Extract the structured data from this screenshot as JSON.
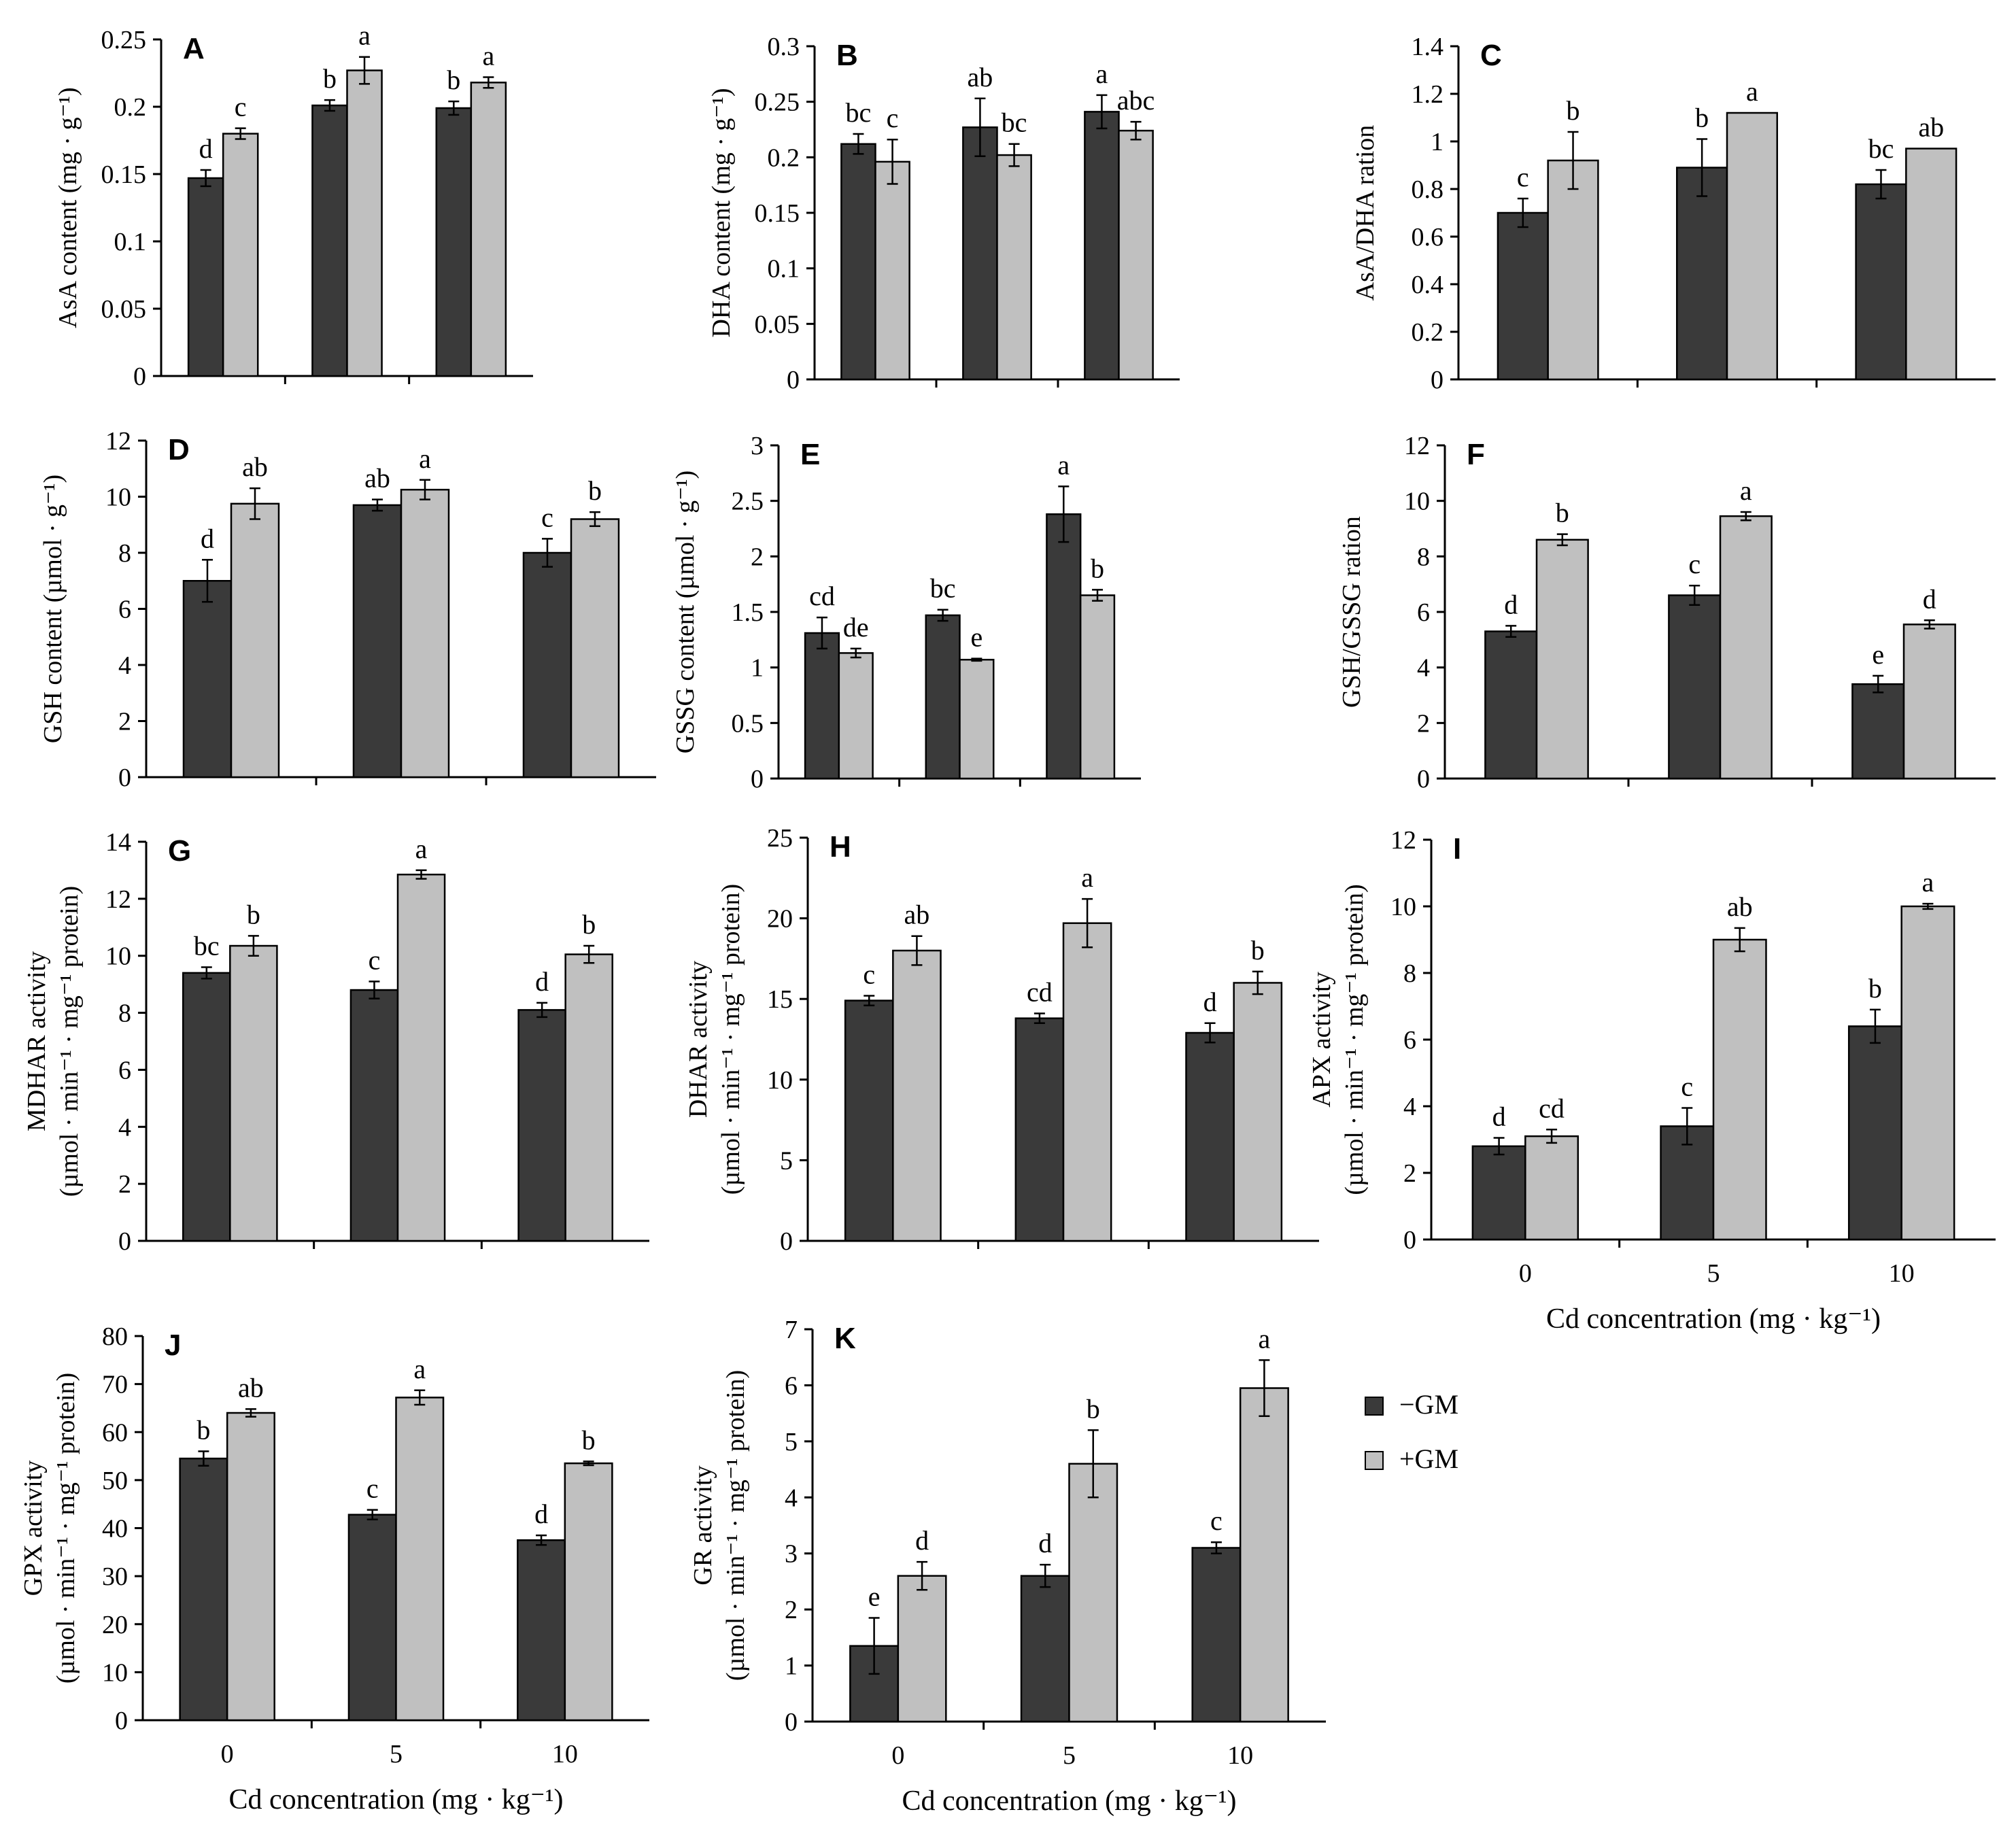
{
  "legend": [
    {
      "label": "−GM",
      "color": "#3a3a3a"
    },
    {
      "label": "+GM",
      "color": "#c0c0c0"
    }
  ],
  "colors": {
    "bar_minus": "#3a3a3a",
    "bar_plus": "#c0c0c0",
    "axis": "#000000"
  },
  "chart_data": [
    {
      "id": "A",
      "type": "bar",
      "categories": [
        "0",
        "5",
        "10"
      ],
      "ylabel": [
        "AsA content (mg · g⁻¹)"
      ],
      "xlabel": "",
      "ylim": [
        0,
        0.25
      ],
      "yticks": [
        "0",
        "0.05",
        "0.1",
        "0.15",
        "0.2",
        "0.25"
      ],
      "show_xticks": false,
      "series": [
        {
          "name": "−GM",
          "values": [
            0.147,
            0.201,
            0.199
          ],
          "errors": [
            0.006,
            0.004,
            0.005
          ],
          "labels": [
            "d",
            "b",
            "b"
          ]
        },
        {
          "name": "+GM",
          "values": [
            0.18,
            0.227,
            0.218
          ],
          "errors": [
            0.004,
            0.01,
            0.004
          ],
          "labels": [
            "c",
            "a",
            "a"
          ]
        }
      ]
    },
    {
      "id": "B",
      "type": "bar",
      "categories": [
        "0",
        "5",
        "10"
      ],
      "ylabel": [
        "DHA content (mg · g⁻¹)"
      ],
      "xlabel": "",
      "ylim": [
        0,
        0.3
      ],
      "yticks": [
        "0",
        "0.05",
        "0.1",
        "0.15",
        "0.2",
        "0.25",
        "0.3"
      ],
      "show_xticks": false,
      "series": [
        {
          "name": "−GM",
          "values": [
            0.212,
            0.227,
            0.241
          ],
          "errors": [
            0.009,
            0.026,
            0.015
          ],
          "labels": [
            "bc",
            "ab",
            "a"
          ]
        },
        {
          "name": "+GM",
          "values": [
            0.196,
            0.202,
            0.224
          ],
          "errors": [
            0.02,
            0.01,
            0.008
          ],
          "labels": [
            "c",
            "bc",
            "abc"
          ]
        }
      ]
    },
    {
      "id": "C",
      "type": "bar",
      "categories": [
        "0",
        "5",
        "10"
      ],
      "ylabel": [
        "AsA/DHA ration"
      ],
      "xlabel": "",
      "ylim": [
        0,
        1.4
      ],
      "yticks": [
        "0",
        "0.2",
        "0.4",
        "0.6",
        "0.8",
        "1",
        "1.2",
        "1.4"
      ],
      "show_xticks": false,
      "series": [
        {
          "name": "−GM",
          "values": [
            0.7,
            0.89,
            0.82
          ],
          "errors": [
            0.06,
            0.12,
            0.06
          ],
          "labels": [
            "c",
            "b",
            "bc"
          ]
        },
        {
          "name": "+GM",
          "values": [
            0.92,
            1.12,
            0.97
          ],
          "errors": [
            0.12,
            0.0,
            0.0
          ],
          "labels": [
            "b",
            "a",
            "ab"
          ]
        }
      ]
    },
    {
      "id": "D",
      "type": "bar",
      "categories": [
        "0",
        "5",
        "10"
      ],
      "ylabel": [
        "GSH content (µmol · g⁻¹)"
      ],
      "xlabel": "",
      "ylim": [
        0,
        12
      ],
      "yticks": [
        "0",
        "2",
        "4",
        "6",
        "8",
        "10",
        "12"
      ],
      "show_xticks": false,
      "series": [
        {
          "name": "−GM",
          "values": [
            7.0,
            9.7,
            8.0
          ],
          "errors": [
            0.75,
            0.2,
            0.5
          ],
          "labels": [
            "d",
            "ab",
            "c"
          ]
        },
        {
          "name": "+GM",
          "values": [
            9.75,
            10.25,
            9.2
          ],
          "errors": [
            0.55,
            0.35,
            0.25
          ],
          "labels": [
            "ab",
            "a",
            "b"
          ]
        }
      ]
    },
    {
      "id": "E",
      "type": "bar",
      "categories": [
        "0",
        "5",
        "10"
      ],
      "ylabel": [
        "GSSG content (µmol · g⁻¹)"
      ],
      "xlabel": "",
      "ylim": [
        0,
        3
      ],
      "yticks": [
        "0",
        "0.5",
        "1",
        "1.5",
        "2",
        "2.5",
        "3"
      ],
      "show_xticks": false,
      "series": [
        {
          "name": "−GM",
          "values": [
            1.31,
            1.47,
            2.38
          ],
          "errors": [
            0.14,
            0.05,
            0.25
          ],
          "labels": [
            "cd",
            "bc",
            "a"
          ]
        },
        {
          "name": "+GM",
          "values": [
            1.13,
            1.07,
            1.65
          ],
          "errors": [
            0.04,
            0.01,
            0.05
          ],
          "labels": [
            "de",
            "e",
            "b"
          ]
        }
      ]
    },
    {
      "id": "F",
      "type": "bar",
      "categories": [
        "0",
        "5",
        "10"
      ],
      "ylabel": [
        "GSH/GSSG ration"
      ],
      "xlabel": "",
      "ylim": [
        0,
        12
      ],
      "yticks": [
        "0",
        "2",
        "4",
        "6",
        "8",
        "10",
        "12"
      ],
      "show_xticks": false,
      "series": [
        {
          "name": "−GM",
          "values": [
            5.3,
            6.6,
            3.4
          ],
          "errors": [
            0.2,
            0.35,
            0.3
          ],
          "labels": [
            "d",
            "c",
            "e"
          ]
        },
        {
          "name": "+GM",
          "values": [
            8.6,
            9.45,
            5.55
          ],
          "errors": [
            0.2,
            0.15,
            0.15
          ],
          "labels": [
            "b",
            "a",
            "d"
          ]
        }
      ]
    },
    {
      "id": "G",
      "type": "bar",
      "categories": [
        "0",
        "5",
        "10"
      ],
      "ylabel": [
        "MDHAR activity",
        "(µmol · min⁻¹ · mg⁻¹ protein)"
      ],
      "xlabel": "",
      "ylim": [
        0,
        14
      ],
      "yticks": [
        "0",
        "2",
        "4",
        "6",
        "8",
        "10",
        "12",
        "14"
      ],
      "show_xticks": false,
      "series": [
        {
          "name": "−GM",
          "values": [
            9.4,
            8.8,
            8.1
          ],
          "errors": [
            0.2,
            0.3,
            0.25
          ],
          "labels": [
            "bc",
            "c",
            "d"
          ]
        },
        {
          "name": "+GM",
          "values": [
            10.35,
            12.85,
            10.05
          ],
          "errors": [
            0.35,
            0.15,
            0.3
          ],
          "labels": [
            "b",
            "a",
            "b"
          ]
        }
      ]
    },
    {
      "id": "H",
      "type": "bar",
      "categories": [
        "0",
        "5",
        "10"
      ],
      "ylabel": [
        "DHAR activity",
        "(µmol · min⁻¹ · mg⁻¹ protein)"
      ],
      "xlabel": "",
      "ylim": [
        0,
        25
      ],
      "yticks": [
        "0",
        "5",
        "10",
        "15",
        "20",
        "25"
      ],
      "show_xticks": false,
      "series": [
        {
          "name": "−GM",
          "values": [
            14.9,
            13.8,
            12.9
          ],
          "errors": [
            0.3,
            0.3,
            0.6
          ],
          "labels": [
            "c",
            "cd",
            "d"
          ]
        },
        {
          "name": "+GM",
          "values": [
            18.0,
            19.7,
            16.0
          ],
          "errors": [
            0.9,
            1.5,
            0.7
          ],
          "labels": [
            "ab",
            "a",
            "b"
          ]
        }
      ]
    },
    {
      "id": "I",
      "type": "bar",
      "categories": [
        "0",
        "5",
        "10"
      ],
      "ylabel": [
        "APX activity",
        "(µmol · min⁻¹ · mg⁻¹ protein)"
      ],
      "xlabel": "Cd concentration (mg · kg⁻¹)",
      "ylim": [
        0,
        12
      ],
      "yticks": [
        "0",
        "2",
        "4",
        "6",
        "8",
        "10",
        "12"
      ],
      "show_xticks": true,
      "series": [
        {
          "name": "−GM",
          "values": [
            2.8,
            3.4,
            6.4
          ],
          "errors": [
            0.25,
            0.55,
            0.5
          ],
          "labels": [
            "d",
            "c",
            "b"
          ]
        },
        {
          "name": "+GM",
          "values": [
            3.1,
            9.0,
            10.0
          ],
          "errors": [
            0.2,
            0.35,
            0.08
          ],
          "labels": [
            "cd",
            "ab",
            "a"
          ]
        }
      ]
    },
    {
      "id": "J",
      "type": "bar",
      "categories": [
        "0",
        "5",
        "10"
      ],
      "ylabel": [
        "GPX activity",
        "(µmol · min⁻¹ · mg⁻¹ protein)"
      ],
      "xlabel": "Cd concentration (mg · kg⁻¹)",
      "ylim": [
        0,
        80
      ],
      "yticks": [
        "0",
        "10",
        "20",
        "30",
        "40",
        "50",
        "60",
        "70",
        "80"
      ],
      "show_xticks": true,
      "series": [
        {
          "name": "−GM",
          "values": [
            54.5,
            42.8,
            37.5
          ],
          "errors": [
            1.5,
            1.0,
            1.0
          ],
          "labels": [
            "b",
            "c",
            "d"
          ]
        },
        {
          "name": "+GM",
          "values": [
            64.0,
            67.2,
            53.5
          ],
          "errors": [
            0.8,
            1.5,
            0.4
          ],
          "labels": [
            "ab",
            "a",
            "b"
          ]
        }
      ]
    },
    {
      "id": "K",
      "type": "bar",
      "categories": [
        "0",
        "5",
        "10"
      ],
      "ylabel": [
        "GR activity",
        "(µmol · min⁻¹ · mg⁻¹ protein)"
      ],
      "xlabel": "Cd concentration (mg · kg⁻¹)",
      "ylim": [
        0,
        7
      ],
      "yticks": [
        "0",
        "1",
        "2",
        "3",
        "4",
        "5",
        "6",
        "7"
      ],
      "show_xticks": true,
      "series": [
        {
          "name": "−GM",
          "values": [
            1.35,
            2.6,
            3.1
          ],
          "errors": [
            0.5,
            0.2,
            0.1
          ],
          "labels": [
            "e",
            "d",
            "c"
          ]
        },
        {
          "name": "+GM",
          "values": [
            2.6,
            4.6,
            5.95
          ],
          "errors": [
            0.25,
            0.6,
            0.5
          ],
          "labels": [
            "d",
            "b",
            "a"
          ]
        }
      ]
    }
  ]
}
